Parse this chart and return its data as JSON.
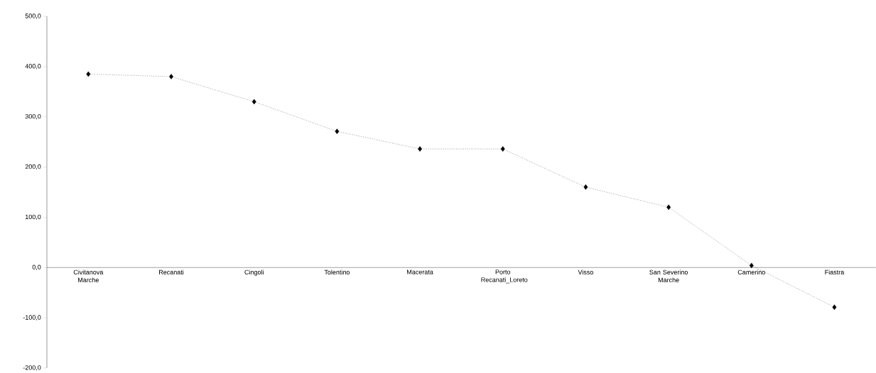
{
  "chart_data": {
    "type": "line",
    "categories": [
      "Civitanova Marche",
      "Recanati",
      "Cingoli",
      "Tolentino",
      "Macerata",
      "Porto Recanati_Loreto",
      "Visso",
      "San Severino Marche",
      "Camerino",
      "Fiastra"
    ],
    "values": [
      385,
      380,
      330,
      271,
      236,
      236,
      160,
      120,
      4,
      -79
    ],
    "color": "#000000",
    "marker": "diamond",
    "line_style": "dotted",
    "ylim": [
      -200,
      500
    ],
    "yticks": [
      {
        "value": -200,
        "label": "-200,0"
      },
      {
        "value": -100,
        "label": "-100,0"
      },
      {
        "value": 0,
        "label": "0,0"
      },
      {
        "value": 100,
        "label": "100,0"
      },
      {
        "value": 200,
        "label": "200,0"
      },
      {
        "value": 300,
        "label": "300,0"
      },
      {
        "value": 400,
        "label": "400,0"
      },
      {
        "value": 500,
        "label": "500,0"
      }
    ],
    "grid": false
  }
}
